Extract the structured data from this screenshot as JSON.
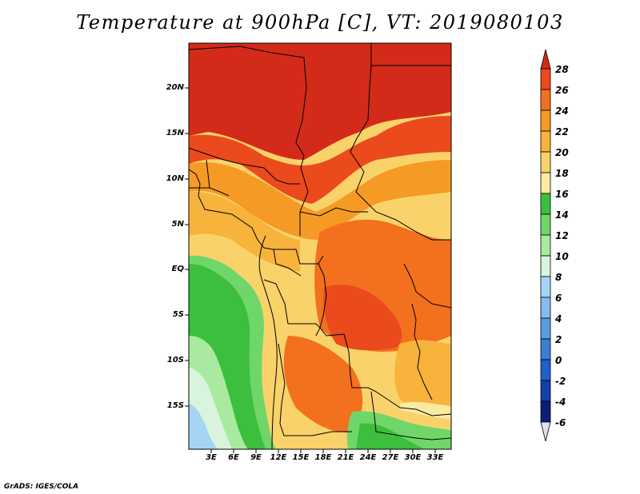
{
  "title": "Temperature at 900hPa [C], VT: 2019080103",
  "credit": "GrADS: IGES/COLA",
  "map": {
    "lat_labels": [
      "20N",
      "15N",
      "10N",
      "5N",
      "EQ",
      "5S",
      "10S",
      "15S"
    ],
    "lon_labels": [
      "3E",
      "6E",
      "9E",
      "12E",
      "15E",
      "18E",
      "21E",
      "24E",
      "27E",
      "30E",
      "33E"
    ]
  },
  "colorbar": {
    "labels": [
      "28",
      "26",
      "24",
      "22",
      "20",
      "18",
      "16",
      "14",
      "12",
      "10",
      "8",
      "6",
      "4",
      "2",
      "0",
      "-2",
      "-4",
      "-6"
    ],
    "colors": [
      "#d42a1a",
      "#ea4a1c",
      "#f2701e",
      "#f59a24",
      "#f7b33c",
      "#fad26a",
      "#fbeaa2",
      "#3cbf3c",
      "#6fd66a",
      "#a9eaa0",
      "#d8f4dc",
      "#a8d4f4",
      "#86bcec",
      "#5a9ee2",
      "#3a7ed6",
      "#2060c8",
      "#1440a8",
      "#0a1e78",
      "#e0e0f0"
    ]
  }
}
